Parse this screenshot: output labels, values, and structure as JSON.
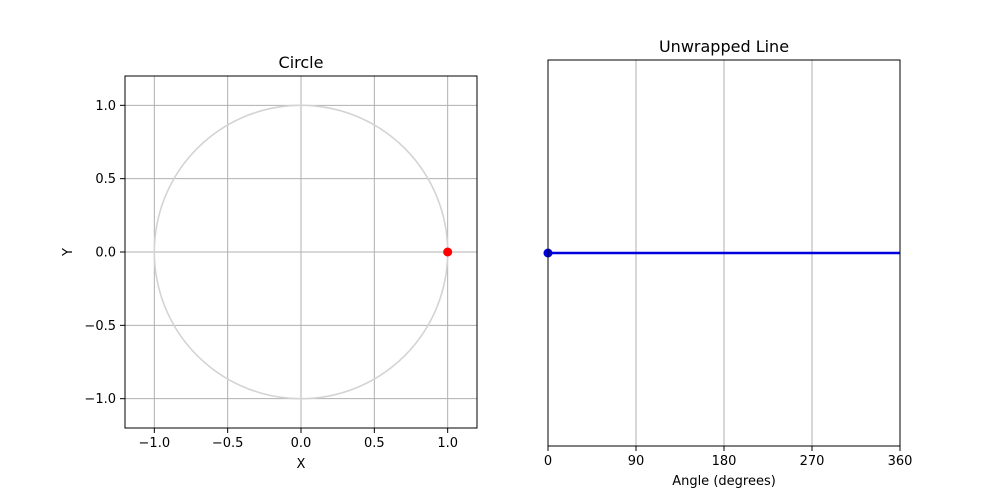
{
  "chart_data": [
    {
      "type": "line",
      "title": "Circle",
      "xlabel": "X",
      "ylabel": "Y",
      "xlim": [
        -1.2,
        1.2
      ],
      "ylim": [
        -1.2,
        1.2
      ],
      "xticks": [
        -1.0,
        -0.5,
        0.0,
        0.5,
        1.0
      ],
      "yticks": [
        -1.0,
        -0.5,
        0.0,
        0.5,
        1.0
      ],
      "xtick_labels": [
        "−1.0",
        "−0.5",
        "0.0",
        "0.5",
        "1.0"
      ],
      "ytick_labels": [
        "−1.0",
        "−0.5",
        "0.0",
        "0.5",
        "1.0"
      ],
      "grid": true,
      "series": [
        {
          "kind": "circle",
          "center": [
            0,
            0
          ],
          "radius": 1.0,
          "color": "#d3d3d3"
        },
        {
          "kind": "point",
          "x": [
            1.0
          ],
          "y": [
            0.0
          ],
          "color": "#ff0000"
        }
      ]
    },
    {
      "type": "line",
      "title": "Unwrapped Line",
      "xlabel": "Angle (degrees)",
      "ylabel": "",
      "xlim": [
        0,
        360
      ],
      "ylim": [
        -1.2,
        1.2
      ],
      "xticks": [
        0,
        90,
        180,
        270,
        360
      ],
      "xtick_labels": [
        "0",
        "90",
        "180",
        "270",
        "360"
      ],
      "yticks": [],
      "grid": true,
      "series": [
        {
          "kind": "line",
          "x": [
            0,
            360
          ],
          "y": [
            0,
            0
          ],
          "color": "#0000dd"
        },
        {
          "kind": "point",
          "x": [
            0
          ],
          "y": [
            0
          ],
          "color": "#0000dd"
        }
      ]
    }
  ]
}
